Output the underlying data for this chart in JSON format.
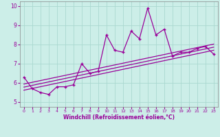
{
  "title": "",
  "xlabel": "Windchill (Refroidissement éolien,°C)",
  "ylabel": "",
  "bg_color": "#cceee8",
  "line_color": "#990099",
  "grid_color": "#aad8d0",
  "x_values": [
    0,
    1,
    2,
    3,
    4,
    5,
    6,
    7,
    8,
    9,
    10,
    11,
    12,
    13,
    14,
    15,
    16,
    17,
    18,
    19,
    20,
    21,
    22,
    23
  ],
  "y_main": [
    6.3,
    5.7,
    5.5,
    5.4,
    5.8,
    5.8,
    5.9,
    7.0,
    6.5,
    6.6,
    8.5,
    7.7,
    7.6,
    8.7,
    8.3,
    9.9,
    8.5,
    8.8,
    7.4,
    7.6,
    7.6,
    7.8,
    7.9,
    7.5
  ],
  "ylim": [
    4.75,
    10.25
  ],
  "xlim": [
    -0.5,
    23.5
  ],
  "yticks": [
    5,
    6,
    7,
    8,
    9,
    10
  ],
  "xticks": [
    0,
    1,
    2,
    3,
    4,
    5,
    6,
    7,
    8,
    9,
    10,
    11,
    12,
    13,
    14,
    15,
    16,
    17,
    18,
    19,
    20,
    21,
    22,
    23
  ],
  "trend_slope": 0.0905,
  "trend_intercepts": [
    5.62,
    5.78,
    5.94
  ],
  "trend_x_start": 0,
  "trend_x_end": 23
}
